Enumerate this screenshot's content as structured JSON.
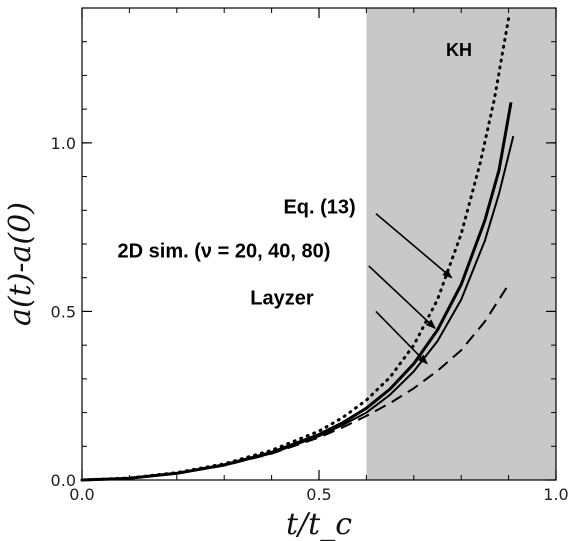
{
  "chart_data": {
    "type": "line",
    "xlabel": "t/t_c",
    "ylabel": "a(t)-a(0)",
    "xlim": [
      0.0,
      1.0
    ],
    "ylim": [
      0.0,
      1.4
    ],
    "x_ticks": [
      {
        "value": 0.0,
        "label": "0.0"
      },
      {
        "value": 0.5,
        "label": "0.5"
      },
      {
        "value": 1.0,
        "label": "1.0"
      }
    ],
    "y_ticks": [
      {
        "value": 0.0,
        "label": "0.0"
      },
      {
        "value": 0.5,
        "label": "0.5"
      },
      {
        "value": 1.0,
        "label": "1.0"
      }
    ],
    "shaded_region": {
      "x_from": 0.6,
      "x_to": 1.0,
      "label": "KH",
      "color": "#c8c8c8"
    },
    "series": [
      {
        "style": "dotted",
        "x": [
          0.0,
          0.1,
          0.2,
          0.3,
          0.4,
          0.5,
          0.55,
          0.6,
          0.65,
          0.7,
          0.75,
          0.8,
          0.84,
          0.87,
          0.9
        ],
        "y": [
          0.0,
          0.006,
          0.022,
          0.048,
          0.088,
          0.145,
          0.185,
          0.237,
          0.305,
          0.4,
          0.535,
          0.73,
          0.94,
          1.13,
          1.37
        ]
      },
      {
        "style": "solid-thick",
        "x": [
          0.0,
          0.1,
          0.2,
          0.3,
          0.4,
          0.5,
          0.55,
          0.6,
          0.65,
          0.7,
          0.75,
          0.8,
          0.85,
          0.88,
          0.905
        ],
        "y": [
          0.0,
          0.005,
          0.02,
          0.045,
          0.082,
          0.135,
          0.17,
          0.213,
          0.27,
          0.345,
          0.445,
          0.58,
          0.77,
          0.92,
          1.12
        ]
      },
      {
        "style": "solid",
        "x": [
          0.0,
          0.1,
          0.2,
          0.3,
          0.4,
          0.5,
          0.55,
          0.6,
          0.65,
          0.7,
          0.75,
          0.8,
          0.85,
          0.88,
          0.91
        ],
        "y": [
          0.0,
          0.005,
          0.019,
          0.043,
          0.079,
          0.13,
          0.163,
          0.2,
          0.253,
          0.322,
          0.412,
          0.535,
          0.71,
          0.85,
          1.02
        ]
      },
      {
        "style": "dashed",
        "x": [
          0.0,
          0.1,
          0.2,
          0.3,
          0.4,
          0.5,
          0.55,
          0.6,
          0.65,
          0.7,
          0.75,
          0.8,
          0.85,
          0.9
        ],
        "y": [
          0.0,
          0.005,
          0.019,
          0.043,
          0.078,
          0.126,
          0.156,
          0.19,
          0.228,
          0.272,
          0.324,
          0.385,
          0.47,
          0.58
        ]
      }
    ],
    "annotations": [
      {
        "text": "Eq. (13)",
        "text_x": 0.425,
        "text_y": 0.79,
        "arrow_from": [
          0.62,
          0.79
        ],
        "arrow_to": [
          0.78,
          0.6
        ]
      },
      {
        "text": "2D sim. (ν = 20, 40, 80)",
        "text_x": 0.075,
        "text_y": 0.66,
        "arrow_from": [
          0.605,
          0.635
        ],
        "arrow_to": [
          0.745,
          0.45
        ]
      },
      {
        "text": "Layzer",
        "text_x": 0.355,
        "text_y": 0.52,
        "arrow_from": [
          0.62,
          0.5
        ],
        "arrow_to": [
          0.728,
          0.345
        ]
      }
    ]
  }
}
